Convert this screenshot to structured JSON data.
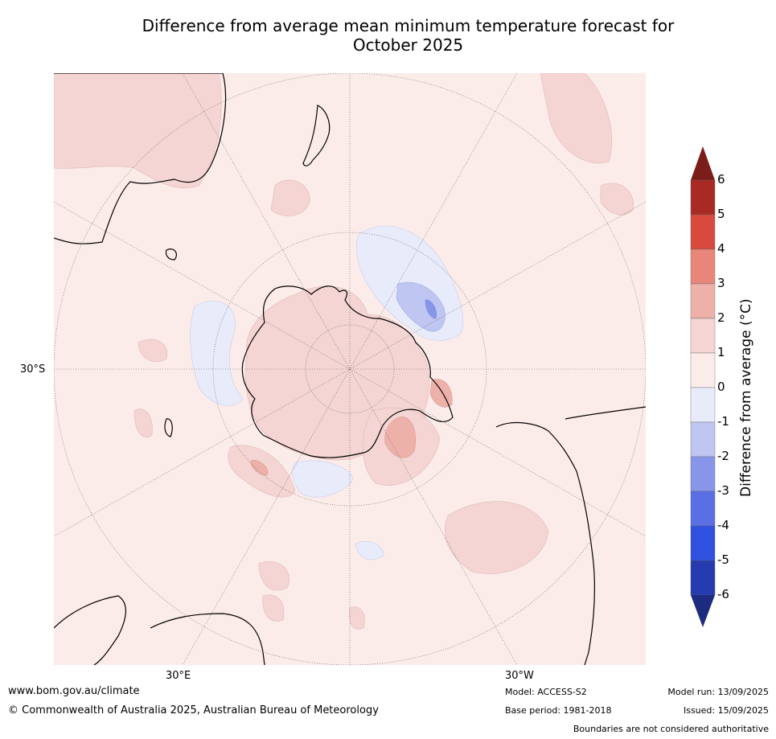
{
  "title_line1": "Difference from average mean minimum temperature forecast for",
  "title_line2": "October 2025",
  "map": {
    "graticule_labels": {
      "lat": "30°S",
      "lon_left": "30°E",
      "lon_right": "30°W"
    }
  },
  "colorbar": {
    "label": "Difference from average ($^\\circ$C)",
    "label_display": "Difference from average (°C)",
    "ticks": [
      "6",
      "5",
      "4",
      "3",
      "2",
      "1",
      "0",
      "-1",
      "-2",
      "-3",
      "-4",
      "-5",
      "-6"
    ],
    "colors": [
      "#7b1e1a",
      "#a82a22",
      "#d84a3d",
      "#e8867a",
      "#eeb1aa",
      "#f4d5d3",
      "#fbecea",
      "#e8ebfa",
      "#bfc6f1",
      "#8896ea",
      "#5a6fe4",
      "#3050df",
      "#243caf",
      "#1c2a80"
    ]
  },
  "footer": {
    "site": "www.bom.gov.au/climate",
    "copyright": "© Commonwealth of Australia 2025, Australian Bureau of Meteorology",
    "model": "Model: ACCESS-S2",
    "base_period": "Base period: 1981-2018",
    "model_run": "Model run: 13/09/2025",
    "issued": "Issued: 15/09/2025",
    "disclaimer": "Boundaries are not considered authoritative"
  }
}
